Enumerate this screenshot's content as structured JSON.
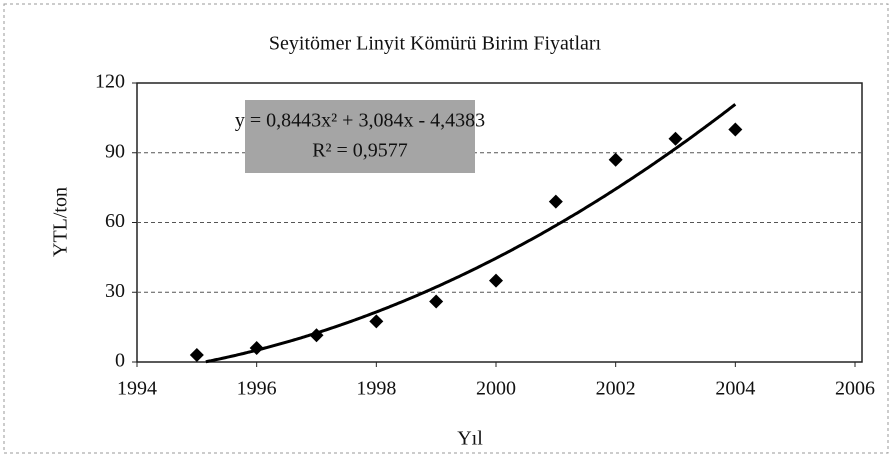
{
  "chart_data": {
    "type": "scatter",
    "title": "Seyitömer Linyit Kömürü Birim Fiyatları",
    "x_label": "Yıl",
    "y_label": "YTL/ton",
    "annotation": [
      "y = 0,8443x² + 3,084x - 4,4383",
      "R² = 0,9577"
    ],
    "x": [
      1995,
      1996,
      1997,
      1998,
      1999,
      2000,
      2001,
      2002,
      2003,
      2004
    ],
    "values": [
      3,
      6,
      11.5,
      17.5,
      26,
      35,
      69,
      87,
      96,
      100
    ],
    "color": "#000000",
    "trendline": "polynomial",
    "xlim": [
      1994,
      2006
    ],
    "xticks": [
      1994,
      1996,
      1998,
      2000,
      2002,
      2004,
      2006
    ],
    "ylim": [
      0,
      120
    ],
    "yticks": [
      0,
      30,
      60,
      90,
      120
    ],
    "grid": true
  }
}
